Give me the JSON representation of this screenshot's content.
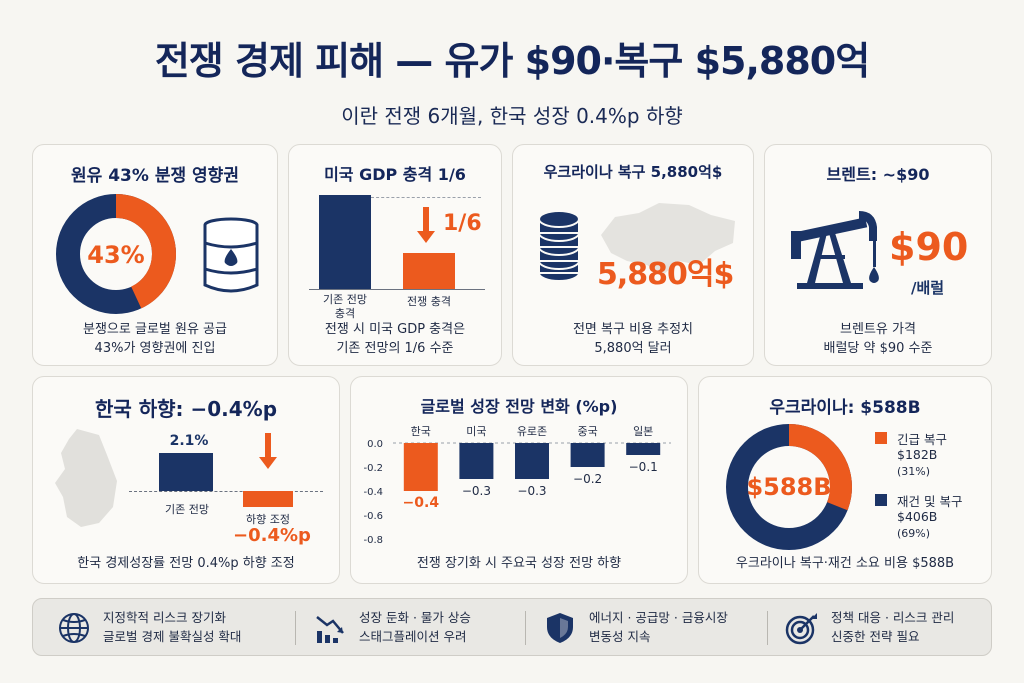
{
  "title": "전쟁 경제 피해 — 유가 $90·복구 $5,880억",
  "subtitle": "이란 전쟁 6개월, 한국 성장 0.4%p 하향",
  "colors": {
    "navy": "#1b3466",
    "orange": "#ec5a1e",
    "background": "#f7f6f2"
  },
  "card_oil": {
    "title": "원유 43% 분쟁 영향권",
    "donut_label": "43%",
    "share": 0.43,
    "icon": "oil-barrel-icon",
    "caption_line1": "분쟁으로 글로벌 원유 공급",
    "caption_line2": "43%가 영향권에 진입"
  },
  "card_gdp": {
    "title": "미국 GDP 충격 1/6",
    "ratio_label": "1/6",
    "bar1_label_line1": "기존 전망",
    "bar1_label_line2": "충격",
    "bar2_label": "전쟁 충격",
    "ratio": 0.1667,
    "caption_line1": "전쟁 시 미국 GDP 충격은",
    "caption_line2": "기존 전망의 1/6 수준"
  },
  "card_ukraine": {
    "title": "우크라이나 복구 5,880억$",
    "value_label": "5,880억$",
    "icon": "coin-stack-icon",
    "caption_line1": "전면 복구 비용 추정치",
    "caption_line2": "5,880억 달러"
  },
  "card_brent": {
    "title": "브렌트: ~$90",
    "value_label": "$90",
    "unit_label": "/배럴",
    "icon": "oil-pump-icon",
    "caption_line1": "브렌트유 가격",
    "caption_line2": "배럴당 약 $90 수준"
  },
  "card_korea": {
    "title": "한국 하향: −0.4%p",
    "bar1_value": "2.1%",
    "bar1_label": "기존 전망",
    "bar2_label": "하향 조정",
    "bar2_value": "−0.4%p",
    "baseline_value": 2.1,
    "cut_value": -0.4,
    "caption": "한국 경제성장률 전망 0.4%p 하향 조정"
  },
  "chart_data": {
    "type": "bar",
    "title": "글로벌 성장 전망 변화 (%p)",
    "categories": [
      "한국",
      "미국",
      "유로존",
      "중국",
      "일본"
    ],
    "values": [
      -0.4,
      -0.3,
      -0.3,
      -0.2,
      -0.1
    ],
    "value_labels": [
      "−0.4",
      "−0.3",
      "−0.3",
      "−0.2",
      "−0.1"
    ],
    "yticks": [
      "0.0",
      "-0.2",
      "-0.4",
      "-0.6",
      "-0.8"
    ],
    "ylim": [
      -0.8,
      0
    ],
    "highlight_color": "#ec5a1e",
    "bar_color": "#1b3466",
    "caption": "전쟁 장기화 시 주요국 성장 전망 하향"
  },
  "card_ukraine_split": {
    "title": "우크라이나: $588B",
    "center_label": "$588B",
    "segments": [
      {
        "name": "긴급 복구",
        "value_label": "$182B",
        "pct_label": "(31%)",
        "share": 0.31,
        "color": "#ec5a1e"
      },
      {
        "name": "재건 및 복구",
        "value_label": "$406B",
        "pct_label": "(69%)",
        "share": 0.69,
        "color": "#1b3466"
      }
    ],
    "caption": "우크라이나 복구·재건 소요 비용 $588B"
  },
  "bottom": [
    {
      "icon": "globe-icon",
      "line1": "지정학적 리스크 장기화",
      "line2": "글로벌 경제 불확실성 확대"
    },
    {
      "icon": "declining-chart-icon",
      "line1": "성장 둔화 · 물가 상승",
      "line2": "스태그플레이션 우려"
    },
    {
      "icon": "shield-icon",
      "line1": "에너지 · 공급망 · 금융시장",
      "line2": "변동성 지속"
    },
    {
      "icon": "target-icon",
      "line1": "정책 대응 · 리스크 관리",
      "line2": "신중한 전략 필요"
    }
  ]
}
